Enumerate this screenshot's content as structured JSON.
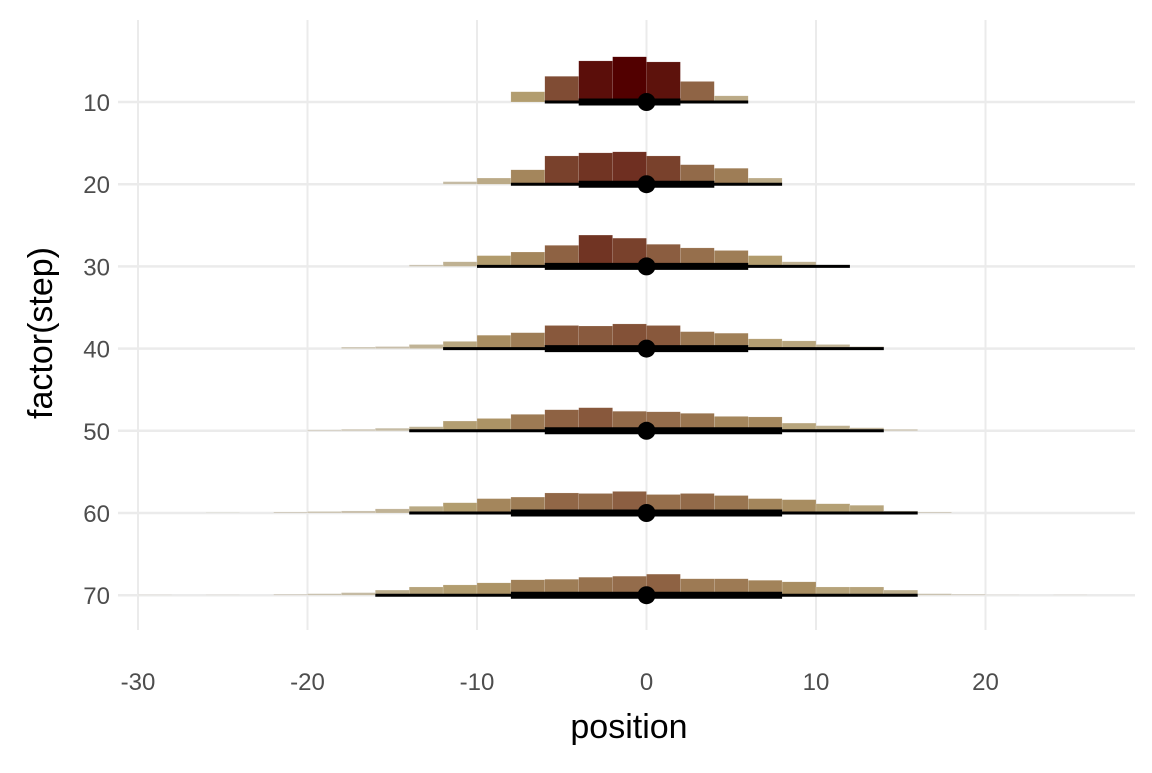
{
  "chart_data": {
    "type": "bar",
    "xlabel": "position",
    "ylabel": "factor(step)",
    "xlim": [
      -30,
      28
    ],
    "x_ticks": [
      -30,
      -20,
      -10,
      0,
      10,
      20
    ],
    "x_tick_labels": [
      "-30",
      "-20",
      "-10",
      "0",
      "10",
      "20"
    ],
    "y_categories": [
      "10",
      "20",
      "30",
      "40",
      "50",
      "60",
      "70"
    ],
    "grid": true,
    "bin_width": 2,
    "density_scale": 0.16,
    "color_low": "#d9d9d9",
    "color_mid": "#b09a6a",
    "color_high": "#520000",
    "series": [
      {
        "name": "10",
        "bin_lefts": [
          -8,
          -6,
          -4,
          -2,
          0,
          2,
          4
        ],
        "density": [
          0.02,
          0.05,
          0.08,
          0.088,
          0.078,
          0.04,
          0.012
        ],
        "point": 0,
        "interval_inner": [
          -4,
          2
        ],
        "interval_outer": [
          -6,
          6
        ]
      },
      {
        "name": "20",
        "bin_lefts": [
          -12,
          -10,
          -8,
          -6,
          -4,
          -2,
          0,
          2,
          4,
          6
        ],
        "density": [
          0.005,
          0.012,
          0.028,
          0.055,
          0.061,
          0.063,
          0.055,
          0.038,
          0.031,
          0.012
        ],
        "point": 0,
        "interval_inner": [
          -4,
          4
        ],
        "interval_outer": [
          -8,
          8
        ]
      },
      {
        "name": "30",
        "bin_lefts": [
          -14,
          -12,
          -10,
          -8,
          -6,
          -4,
          -2,
          0,
          2,
          4,
          6,
          8,
          10
        ],
        "density": [
          0.003,
          0.009,
          0.021,
          0.028,
          0.041,
          0.061,
          0.055,
          0.043,
          0.036,
          0.031,
          0.021,
          0.009,
          0.003
        ],
        "point": 0,
        "interval_inner": [
          -6,
          6
        ],
        "interval_outer": [
          -10,
          12
        ]
      },
      {
        "name": "40",
        "bin_lefts": [
          -18,
          -16,
          -14,
          -12,
          -10,
          -8,
          -6,
          -4,
          -2,
          0,
          2,
          4,
          6,
          8,
          10,
          12
        ],
        "density": [
          0.003,
          0.004,
          0.008,
          0.014,
          0.026,
          0.031,
          0.045,
          0.044,
          0.048,
          0.045,
          0.033,
          0.03,
          0.019,
          0.015,
          0.008,
          0.004
        ],
        "point": 0,
        "interval_inner": [
          -6,
          6
        ],
        "interval_outer": [
          -12,
          14
        ]
      },
      {
        "name": "50",
        "bin_lefts": [
          -20,
          -18,
          -16,
          -14,
          -12,
          -10,
          -8,
          -6,
          -4,
          -2,
          0,
          2,
          4,
          6,
          8,
          10,
          12,
          14
        ],
        "density": [
          0.002,
          0.003,
          0.005,
          0.008,
          0.019,
          0.024,
          0.032,
          0.041,
          0.045,
          0.038,
          0.037,
          0.034,
          0.028,
          0.027,
          0.015,
          0.01,
          0.006,
          0.003
        ],
        "point": 0,
        "interval_inner": [
          -6,
          8
        ],
        "interval_outer": [
          -14,
          14
        ]
      },
      {
        "name": "60",
        "bin_lefts": [
          -26,
          -22,
          -20,
          -18,
          -16,
          -14,
          -12,
          -10,
          -8,
          -6,
          -4,
          -2,
          0,
          2,
          4,
          6,
          8,
          10,
          12,
          14,
          16
        ],
        "density": [
          0.001,
          0.002,
          0.003,
          0.004,
          0.008,
          0.013,
          0.02,
          0.028,
          0.031,
          0.039,
          0.038,
          0.042,
          0.036,
          0.038,
          0.034,
          0.028,
          0.026,
          0.018,
          0.015,
          0.004,
          0.002
        ],
        "point": 0,
        "interval_inner": [
          -8,
          8
        ],
        "interval_outer": [
          -14,
          16
        ]
      },
      {
        "name": "70",
        "bin_lefts": [
          -30,
          -26,
          -22,
          -20,
          -18,
          -16,
          -14,
          -12,
          -10,
          -8,
          -6,
          -4,
          -2,
          0,
          2,
          4,
          6,
          8,
          10,
          12,
          14,
          16,
          18,
          20,
          24
        ],
        "density": [
          0.001,
          0.001,
          0.002,
          0.003,
          0.005,
          0.01,
          0.016,
          0.02,
          0.024,
          0.03,
          0.031,
          0.035,
          0.037,
          0.041,
          0.032,
          0.032,
          0.029,
          0.026,
          0.016,
          0.016,
          0.01,
          0.003,
          0.002,
          0.001,
          0.001
        ],
        "point": 0,
        "interval_inner": [
          -8,
          8
        ],
        "interval_outer": [
          -16,
          16
        ]
      }
    ]
  }
}
